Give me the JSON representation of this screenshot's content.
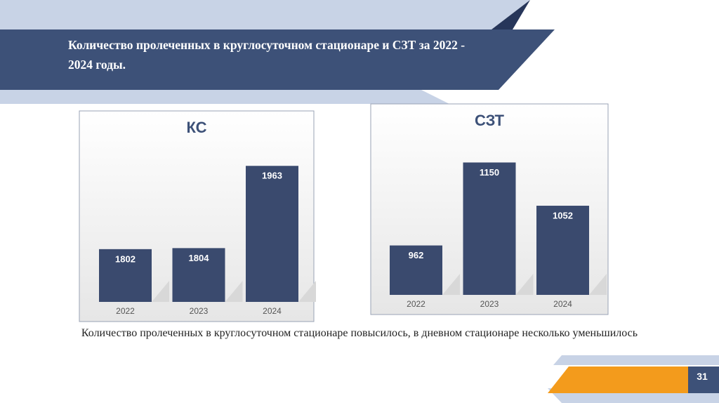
{
  "slide": {
    "title": "Количество пролеченных в круглосуточном стационаре и СЗТ за 2022 - 2024 годы.",
    "caption": "Количество пролеченных в круглосуточном стационаре повысилось, в дневном стационаре несколько уменьшилось",
    "page": "31"
  },
  "chart_data": [
    {
      "type": "bar",
      "title": "КС",
      "categories": [
        "2022",
        "2023",
        "2024"
      ],
      "values": [
        1802,
        1804,
        1963
      ],
      "color": "#3a4a6e",
      "ylim": [
        1700,
        2000
      ]
    },
    {
      "type": "bar",
      "title": "СЗТ",
      "categories": [
        "2022",
        "2023",
        "2024"
      ],
      "values": [
        962,
        1150,
        1052
      ],
      "color": "#3a4a6e",
      "ylim": [
        850,
        1200
      ]
    }
  ]
}
